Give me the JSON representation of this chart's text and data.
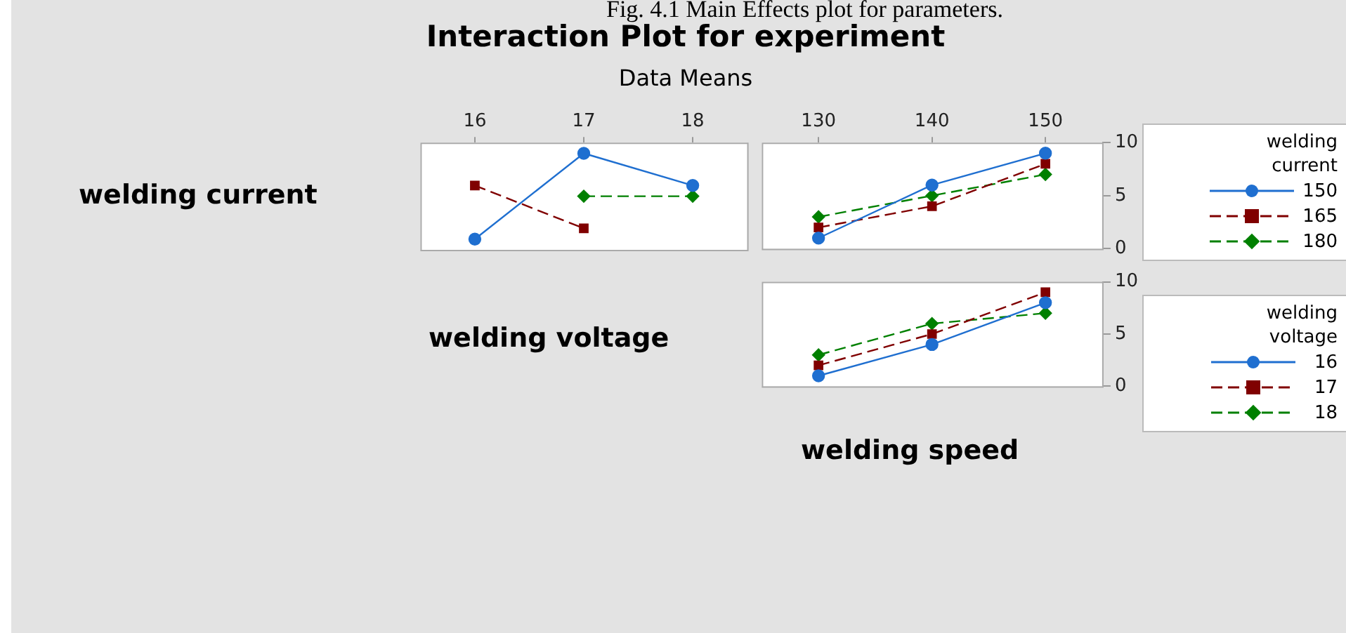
{
  "chart_data": [
    {
      "type": "line",
      "title": "Interaction Plot for experiment",
      "subtitle": "Data Means",
      "ylabel": "welding current",
      "xlabel": "welding voltage",
      "annotations": [
        "Fig. 4.1 Main Effects plot for parameters."
      ],
      "categories": [
        "16",
        "17",
        "18"
      ],
      "ylim": [
        0,
        10
      ],
      "yticks": [
        0,
        5,
        10
      ],
      "tick_labels": "x",
      "series": [
        {
          "color": "#1f6fd0",
          "values": [
            1,
            9,
            6
          ],
          "marker": "circle",
          "line_style": "solid"
        },
        {
          "color": "#800000",
          "values": [
            6,
            2,
            null
          ],
          "marker": "square",
          "line_style": "dashed"
        },
        {
          "color": "#008000",
          "values": [
            null,
            5,
            5
          ],
          "marker": "diamond",
          "line_style": "dashed"
        }
      ]
    },
    {
      "type": "line",
      "categories": [
        "130",
        "140",
        "150"
      ],
      "ylim": [
        0,
        10
      ],
      "yticks": [
        0,
        5,
        10
      ],
      "legend": "right",
      "legend_title": "welding current",
      "series": [
        {
          "name": "150",
          "color": "#1f6fd0",
          "values": [
            1,
            6,
            9
          ],
          "marker": "circle",
          "line_style": "solid"
        },
        {
          "name": "165",
          "color": "#800000",
          "values": [
            2,
            4,
            8
          ],
          "marker": "square",
          "line_style": "dashed"
        },
        {
          "name": "180",
          "color": "#008000",
          "values": [
            3,
            5,
            7
          ],
          "marker": "diamond",
          "line_style": "dashed"
        }
      ]
    },
    {
      "type": "line",
      "xlabel": "welding speed",
      "categories": [
        "130",
        "140",
        "150"
      ],
      "ylim": [
        0,
        10
      ],
      "yticks": [
        0,
        5,
        10
      ],
      "tick_labels": "y",
      "legend": "right",
      "legend_title": "welding voltage",
      "series": [
        {
          "name": "16",
          "color": "#1f6fd0",
          "values": [
            1,
            4,
            8
          ],
          "marker": "circle",
          "line_style": "solid"
        },
        {
          "name": "17",
          "color": "#800000",
          "values": [
            2,
            5,
            9
          ],
          "marker": "square",
          "line_style": "dashed"
        },
        {
          "name": "18",
          "color": "#008000",
          "values": [
            3,
            6,
            7
          ],
          "marker": "diamond",
          "line_style": "dashed"
        }
      ]
    }
  ]
}
